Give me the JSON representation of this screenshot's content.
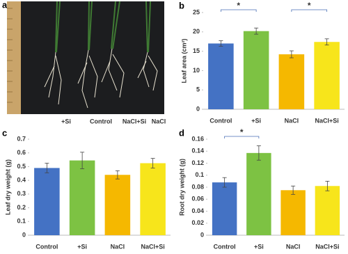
{
  "photo_panel": {
    "panel_label": "a",
    "labels": [
      "+Si",
      "Control",
      "NaCl+Si",
      "NaCl"
    ]
  },
  "chart_data": [
    {
      "type": "bar",
      "panel_label": "b",
      "y_label": "Leaf area (cm²)",
      "categories": [
        "Control",
        "+Si",
        "NaCl",
        "NaCl+Si"
      ],
      "values": [
        17,
        20.2,
        14.2,
        17.4
      ],
      "errors": [
        0.7,
        0.8,
        0.9,
        0.8
      ],
      "colors": [
        "#4472c4",
        "#7dc243",
        "#f5b800",
        "#f7e51b"
      ],
      "ylim": [
        0,
        25
      ],
      "yticks": [
        0,
        5,
        10,
        15,
        20,
        25
      ],
      "significance": [
        {
          "categories": [
            0,
            1
          ],
          "label": "*"
        },
        {
          "categories": [
            2,
            3
          ],
          "label": "*"
        }
      ]
    },
    {
      "type": "bar",
      "panel_label": "c",
      "y_label": "Leaf dry weight (g)",
      "categories": [
        "Control",
        "+Si",
        "NaCl",
        "NaCl+Si"
      ],
      "values": [
        0.49,
        0.545,
        0.44,
        0.525
      ],
      "errors": [
        0.035,
        0.06,
        0.03,
        0.035
      ],
      "colors": [
        "#4472c4",
        "#7dc243",
        "#f5b800",
        "#f7e51b"
      ],
      "ylim": [
        0,
        0.7
      ],
      "yticks": [
        0,
        0.1,
        0.2,
        0.3,
        0.4,
        0.5,
        0.6,
        0.7
      ]
    },
    {
      "type": "bar",
      "panel_label": "d",
      "y_label": "Root dry weight (g)",
      "categories": [
        "Control",
        "+Si",
        "NaCl",
        "NaCl+Si"
      ],
      "values": [
        0.088,
        0.137,
        0.075,
        0.082
      ],
      "errors": [
        0.008,
        0.012,
        0.007,
        0.008
      ],
      "colors": [
        "#4472c4",
        "#7dc243",
        "#f5b800",
        "#f7e51b"
      ],
      "ylim": [
        0,
        0.16
      ],
      "yticks": [
        0,
        0.02,
        0.04,
        0.06,
        0.08,
        0.1,
        0.12,
        0.14,
        0.16
      ],
      "significance": [
        {
          "categories": [
            0,
            1
          ],
          "label": "*"
        }
      ]
    }
  ]
}
